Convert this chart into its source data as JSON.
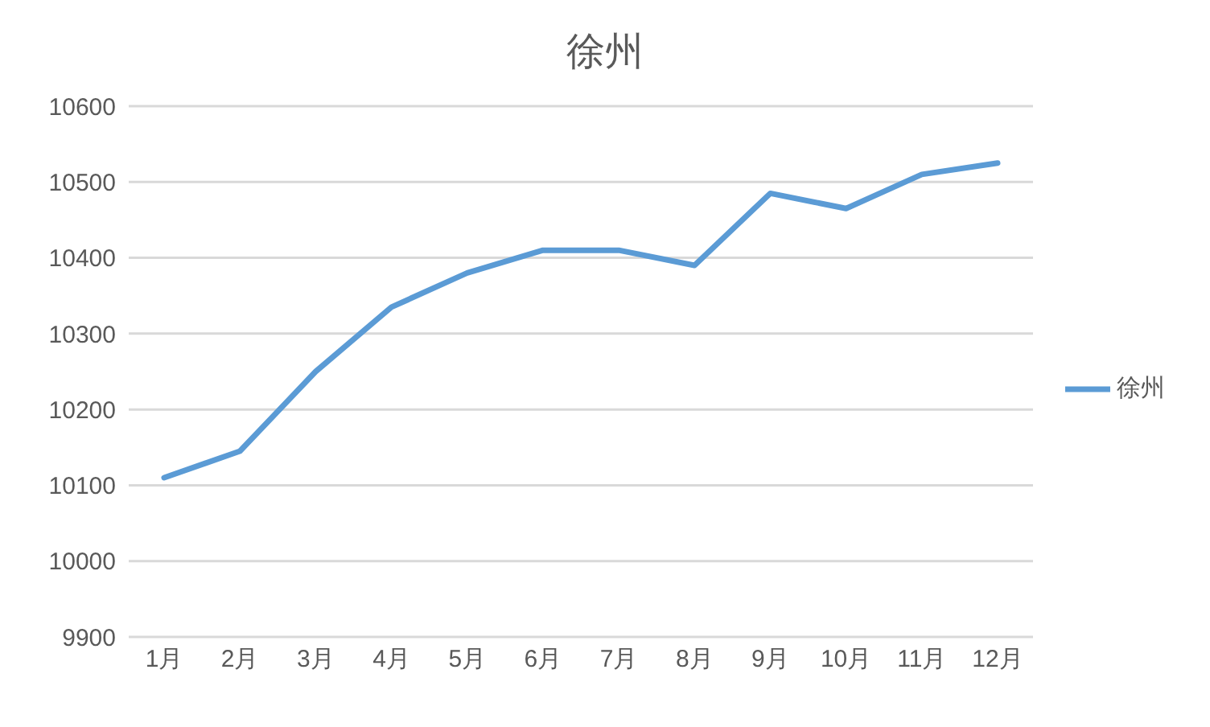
{
  "chart_data": {
    "type": "line",
    "title": "徐州",
    "categories": [
      "1月",
      "2月",
      "3月",
      "4月",
      "5月",
      "6月",
      "7月",
      "8月",
      "9月",
      "10月",
      "11月",
      "12月"
    ],
    "series": [
      {
        "name": "徐州",
        "color": "#5b9bd5",
        "values": [
          10110,
          10145,
          10250,
          10335,
          10380,
          10410,
          10410,
          10390,
          10485,
          10465,
          10510,
          10525
        ]
      }
    ],
    "ylim": [
      9900,
      10600
    ],
    "yticks": [
      9900,
      10000,
      10100,
      10200,
      10300,
      10400,
      10500,
      10600
    ],
    "grid": "y",
    "legend": "right",
    "marker": "none",
    "line_style": "solid"
  }
}
